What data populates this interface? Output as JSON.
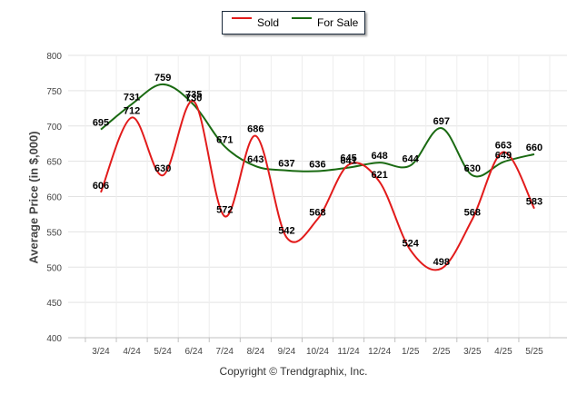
{
  "chart_data": {
    "type": "line",
    "categories": [
      "3/24",
      "4/24",
      "5/24",
      "6/24",
      "7/24",
      "8/24",
      "9/24",
      "10/24",
      "11/24",
      "12/24",
      "1/25",
      "2/25",
      "3/25",
      "4/25",
      "5/25"
    ],
    "series": [
      {
        "name": "Sold",
        "color": "#e21b1b",
        "values": [
          606,
          712,
          630,
          735,
          572,
          686,
          542,
          568,
          645,
          621,
          524,
          498,
          568,
          663,
          583
        ]
      },
      {
        "name": "For Sale",
        "color": "#1a6a12",
        "values": [
          695,
          731,
          759,
          730,
          671,
          643,
          637,
          636,
          641,
          648,
          644,
          697,
          630,
          649,
          660
        ]
      }
    ],
    "ylabel": "Average Price (in $,000)",
    "ylim": [
      400,
      800
    ],
    "yticks": [
      400,
      450,
      500,
      550,
      600,
      650,
      700,
      750,
      800
    ],
    "grid": true,
    "legend_position": "top-center"
  },
  "footer": {
    "copyright": "Copyright © Trendgraphix, Inc."
  }
}
